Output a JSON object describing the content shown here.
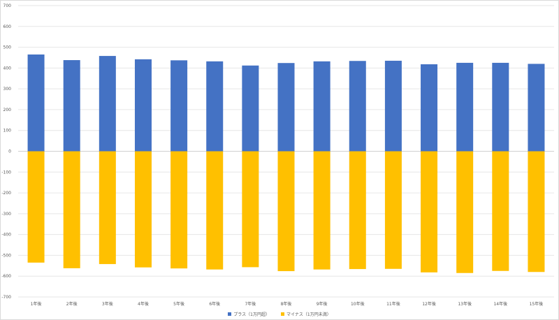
{
  "chart_data": {
    "type": "bar",
    "stacked": true,
    "categories": [
      "1年後",
      "2年後",
      "3年後",
      "4年後",
      "5年後",
      "6年後",
      "7年後",
      "8年後",
      "9年後",
      "10年後",
      "11年後",
      "12年後",
      "13年後",
      "14年後",
      "15年後"
    ],
    "series": [
      {
        "name": "プラス（1万円超）",
        "color": "#4472C4",
        "values": [
          465,
          438,
          458,
          442,
          437,
          432,
          412,
          424,
          432,
          434,
          435,
          418,
          425,
          425,
          420
        ]
      },
      {
        "name": "マイナス（1万円未満）",
        "color": "#FFC000",
        "values": [
          -535,
          -562,
          -542,
          -558,
          -563,
          -568,
          -557,
          -576,
          -568,
          -566,
          -565,
          -582,
          -585,
          -575,
          -580
        ]
      }
    ],
    "ylim": [
      -700,
      700
    ],
    "yticks": [
      700,
      600,
      500,
      400,
      300,
      200,
      100,
      0,
      -100,
      -200,
      -300,
      -400,
      -500,
      -600,
      -700
    ],
    "grid": true,
    "legend_position": "bottom",
    "title": "",
    "xlabel": "",
    "ylabel": ""
  }
}
